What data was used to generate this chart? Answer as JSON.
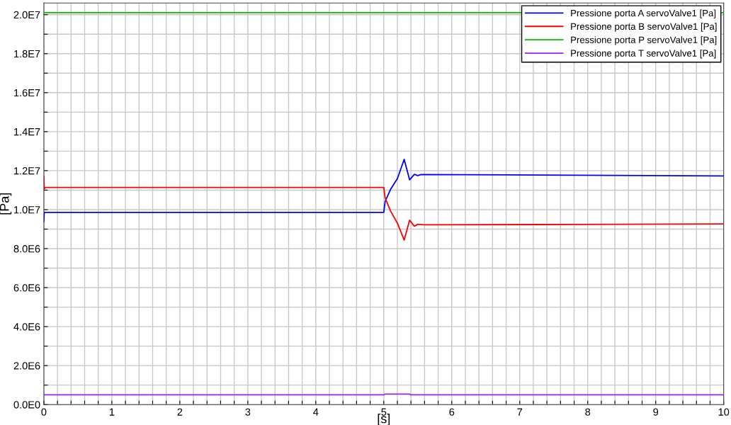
{
  "chart_data": {
    "type": "line",
    "xlabel": "[s]",
    "ylabel": "[Pa]",
    "xlim": [
      0,
      10
    ],
    "ylim": [
      0,
      20600000
    ],
    "xticks": [
      0,
      {
        "value": 0.2,
        "label": null
      },
      {
        "value": 0.4,
        "label": null
      },
      {
        "value": 0.6,
        "label": null
      },
      {
        "value": 0.8,
        "label": null
      },
      1,
      {
        "value": 1.2,
        "label": null
      },
      {
        "value": 1.4,
        "label": null
      },
      {
        "value": 1.6,
        "label": null
      },
      {
        "value": 1.8,
        "label": null
      },
      2,
      {
        "value": 2.2,
        "label": null
      },
      {
        "value": 2.4,
        "label": null
      },
      {
        "value": 2.6,
        "label": null
      },
      {
        "value": 2.8,
        "label": null
      },
      3,
      {
        "value": 3.2,
        "label": null
      },
      {
        "value": 3.4,
        "label": null
      },
      {
        "value": 3.6,
        "label": null
      },
      {
        "value": 3.8,
        "label": null
      },
      4,
      {
        "value": 4.2,
        "label": null
      },
      {
        "value": 4.4,
        "label": null
      },
      {
        "value": 4.6,
        "label": null
      },
      {
        "value": 4.8,
        "label": null
      },
      5,
      {
        "value": 5.2,
        "label": null
      },
      {
        "value": 5.4,
        "label": null
      },
      {
        "value": 5.6,
        "label": null
      },
      {
        "value": 5.8,
        "label": null
      },
      6,
      {
        "value": 6.2,
        "label": null
      },
      {
        "value": 6.4,
        "label": null
      },
      {
        "value": 6.6,
        "label": null
      },
      {
        "value": 6.8,
        "label": null
      },
      7,
      {
        "value": 7.2,
        "label": null
      },
      {
        "value": 7.4,
        "label": null
      },
      {
        "value": 7.6,
        "label": null
      },
      {
        "value": 7.8,
        "label": null
      },
      8,
      {
        "value": 8.2,
        "label": null
      },
      {
        "value": 8.4,
        "label": null
      },
      {
        "value": 8.6,
        "label": null
      },
      {
        "value": 8.8,
        "label": null
      },
      9,
      {
        "value": 9.2,
        "label": null
      },
      {
        "value": 9.4,
        "label": null
      },
      {
        "value": 9.6,
        "label": null
      },
      {
        "value": 9.8,
        "label": null
      },
      10
    ],
    "yticks": [
      {
        "value": 0,
        "label": "0.0E0"
      },
      {
        "value": 1000000,
        "label": null
      },
      {
        "value": 2000000,
        "label": "2.0E6"
      },
      {
        "value": 3000000,
        "label": null
      },
      {
        "value": 4000000,
        "label": "4.0E6"
      },
      {
        "value": 5000000,
        "label": null
      },
      {
        "value": 6000000,
        "label": "6.0E6"
      },
      {
        "value": 7000000,
        "label": null
      },
      {
        "value": 8000000,
        "label": "8.0E6"
      },
      {
        "value": 9000000,
        "label": null
      },
      {
        "value": 10000000,
        "label": "1.0E7"
      },
      {
        "value": 11000000,
        "label": null
      },
      {
        "value": 12000000,
        "label": "1.2E7"
      },
      {
        "value": 13000000,
        "label": null
      },
      {
        "value": 14000000,
        "label": "1.4E7"
      },
      {
        "value": 15000000,
        "label": null
      },
      {
        "value": 16000000,
        "label": "1.6E7"
      },
      {
        "value": 17000000,
        "label": null
      },
      {
        "value": 18000000,
        "label": "1.8E7"
      },
      {
        "value": 19000000,
        "label": null
      },
      {
        "value": 20000000,
        "label": "2.0E7"
      }
    ],
    "grid": true,
    "legend": "top right",
    "marker": "none",
    "line_style": "solid",
    "series": [
      {
        "name": "Pressione porta A servoValve1 [Pa]",
        "color": "#0000ff",
        "x": [
          0,
          0.005,
          5.0,
          5.02,
          5.1,
          5.2,
          5.3,
          5.38,
          5.45,
          5.5,
          5.55,
          6.8,
          10
        ],
        "values": [
          9400000,
          9860000,
          9860000,
          10420000,
          11040000,
          11590000,
          12580000,
          11530000,
          11810000,
          11750000,
          11800000,
          11780000,
          11730000
        ]
      },
      {
        "name": "Pressione porta B servoValve1 [Pa]",
        "color": "#ff0000",
        "x": [
          0,
          0.005,
          0.02,
          5.0,
          5.02,
          5.1,
          5.2,
          5.3,
          5.38,
          5.45,
          5.5,
          5.6,
          7.8,
          10
        ],
        "values": [
          11700000,
          11050000,
          11140000,
          11140000,
          10600000,
          9930000,
          9310000,
          8440000,
          9460000,
          9150000,
          9250000,
          9220000,
          9240000,
          9270000
        ]
      },
      {
        "name": "Pressione porta P servoValve1 [Pa]",
        "color": "#00c000",
        "x": [
          0,
          10
        ],
        "values": [
          20100000,
          20100000
        ]
      },
      {
        "name": "Pressione porta T servoValve1 [Pa]",
        "color": "#a020f0",
        "x": [
          0,
          5.0,
          5.02,
          5.38,
          5.4,
          10
        ],
        "values": [
          500000,
          500000,
          540000,
          540000,
          500000,
          500000
        ]
      }
    ]
  }
}
